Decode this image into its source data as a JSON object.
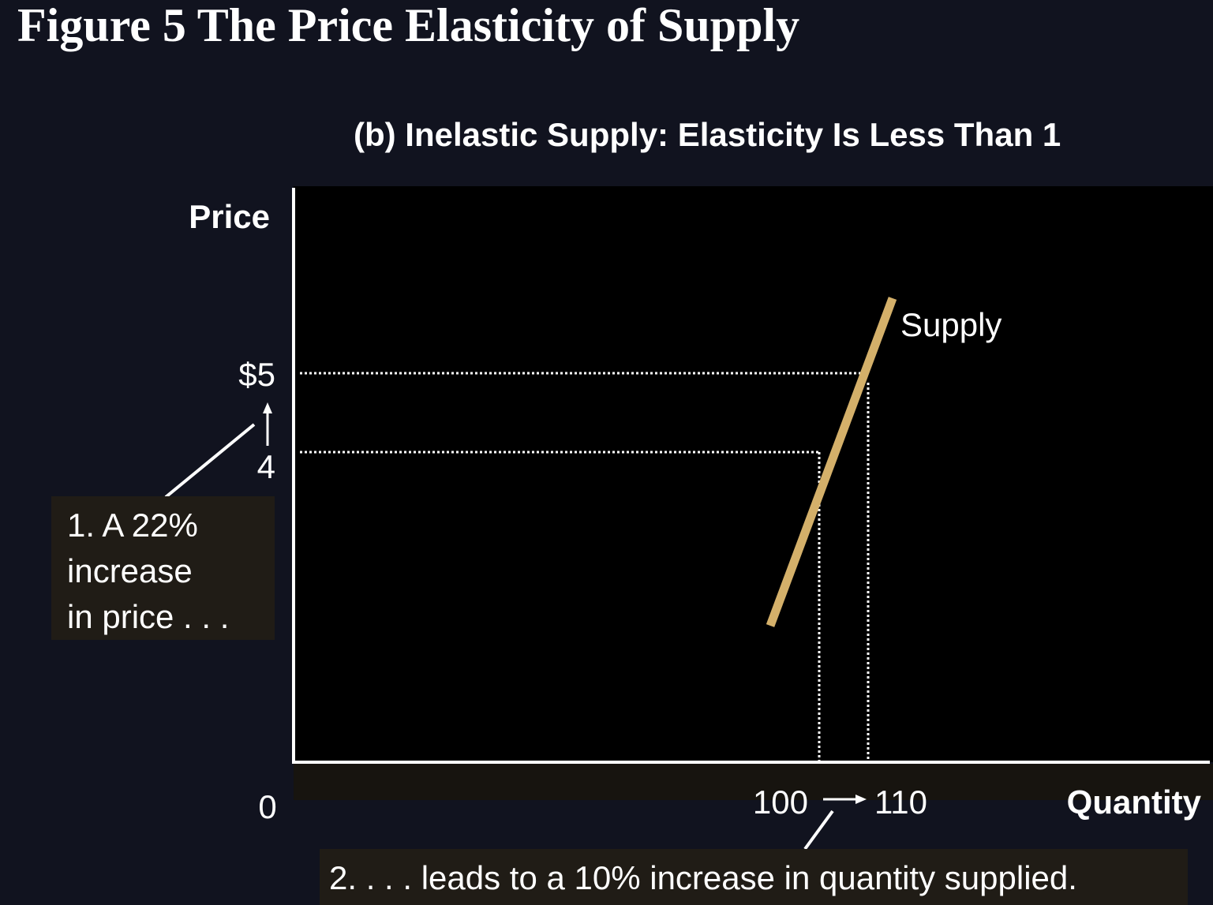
{
  "figure_title": "Figure 5 The Price Elasticity of Supply",
  "chart_data": {
    "type": "line",
    "title": "(b) Inelastic Supply: Elasticity Is Less Than 1",
    "xlabel": "Quantity",
    "ylabel": "Price",
    "origin_label": "0",
    "series": [
      {
        "name": "Supply",
        "x": [
          90,
          115
        ],
        "y": [
          1.8,
          5.95
        ]
      }
    ],
    "reference_points": [
      {
        "x": 100,
        "y": 4,
        "x_label": "100",
        "y_label": "4"
      },
      {
        "x": 110,
        "y": 5,
        "x_label": "110",
        "y_label": "$5"
      }
    ],
    "annotations": [
      {
        "text_lines": [
          "1. A 22%",
          "increase",
          "in price . . ."
        ]
      },
      {
        "text": "2. . . . leads to a 10% increase in quantity supplied."
      }
    ],
    "grid": false,
    "colors": {
      "supply_line": "#d4b06a",
      "plot_bg": "#000000",
      "page_bg": "#11131f"
    }
  }
}
